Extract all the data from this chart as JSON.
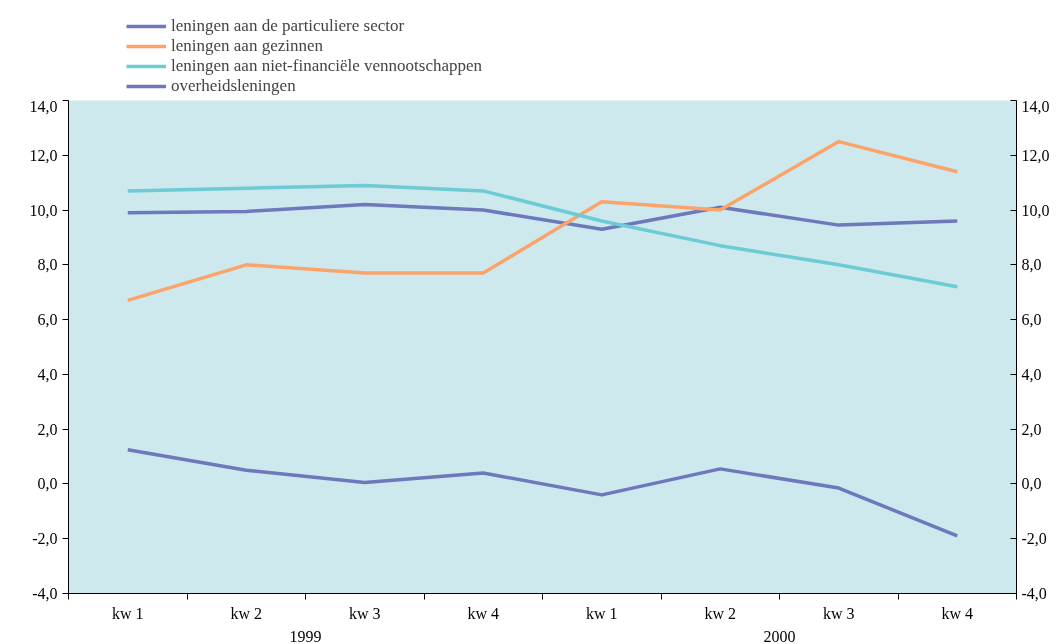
{
  "chart_data": {
    "type": "line",
    "categories": [
      "kw 1",
      "kw 2",
      "kw 3",
      "kw 4",
      "kw 1",
      "kw 2",
      "kw 3",
      "kw 4"
    ],
    "annotations": [
      "1999",
      "2000"
    ],
    "ylim": [
      -4,
      14
    ],
    "yticks": [
      {
        "value": -4,
        "label": "-4,0"
      },
      {
        "value": -2,
        "label": "-2,0"
      },
      {
        "value": 0,
        "label": "0,0"
      },
      {
        "value": 2,
        "label": "2,0"
      },
      {
        "value": 4,
        "label": "4,0"
      },
      {
        "value": 6,
        "label": "6,0"
      },
      {
        "value": 8,
        "label": "8,0"
      },
      {
        "value": 10,
        "label": "10,0"
      },
      {
        "value": 12,
        "label": "12,0"
      },
      {
        "value": 14,
        "label": "14,0"
      }
    ],
    "y2lim": [
      -4,
      14
    ],
    "y2ticks": [
      {
        "value": -4,
        "label": "-4,0"
      },
      {
        "value": -2,
        "label": "-2,0"
      },
      {
        "value": 0,
        "label": "0,0"
      },
      {
        "value": 2,
        "label": "2,0"
      },
      {
        "value": 4,
        "label": "4,0"
      },
      {
        "value": 6,
        "label": "6,0"
      },
      {
        "value": 8,
        "label": "8,0"
      },
      {
        "value": 10,
        "label": "10,0"
      },
      {
        "value": 12,
        "label": "12,0"
      },
      {
        "value": 14,
        "label": "14,0"
      }
    ],
    "grid": false,
    "legend": "top left",
    "series": [
      {
        "name": "leningen aan de particuliere sector",
        "color": "#6e78bb",
        "values": [
          9.9,
          9.95,
          10.2,
          10.0,
          9.3,
          10.1,
          9.45,
          9.6
        ]
      },
      {
        "name": "leningen aan gezinnen",
        "color": "#fca36a",
        "values": [
          6.7,
          8.0,
          7.7,
          7.7,
          10.3,
          10.0,
          12.5,
          11.4
        ]
      },
      {
        "name": "leningen aan niet-financiële vennootschappen",
        "color": "#6ccbd4",
        "values": [
          10.7,
          10.8,
          10.9,
          10.7,
          9.6,
          8.7,
          8.0,
          7.2
        ]
      },
      {
        "name": "overheidsleningen",
        "color": "#6e78bb",
        "values": [
          1.25,
          0.5,
          0.05,
          0.4,
          -0.4,
          0.55,
          -0.15,
          -1.9
        ]
      }
    ]
  }
}
